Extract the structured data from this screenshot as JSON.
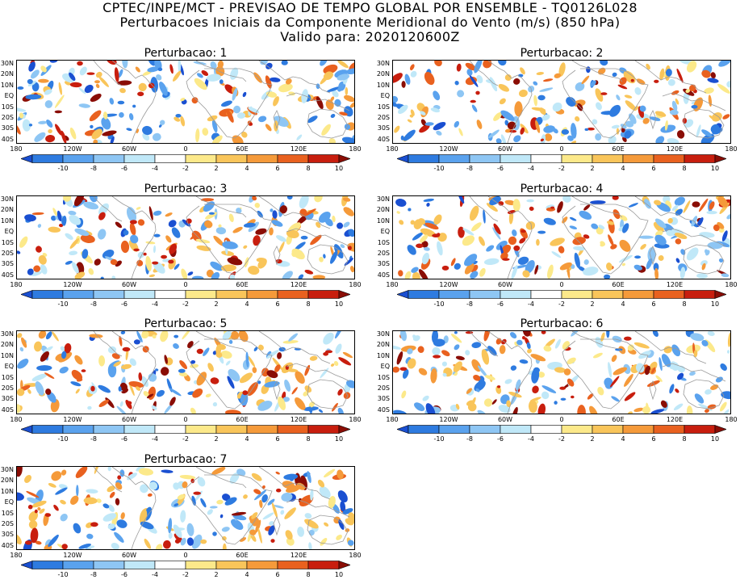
{
  "title": {
    "line1": "CPTEC/INPE/MCT - PREVISAO DE TEMPO GLOBAL POR ENSEMBLE - TQ0126L028",
    "line2": "Perturbacoes Iniciais da Componente Meridional do Vento (m/s) (850 hPa)",
    "line3": "Valido para: 2020120600Z"
  },
  "lat_labels": [
    "30N",
    "20N",
    "10N",
    "EQ",
    "10S",
    "20S",
    "30S",
    "40S"
  ],
  "lon_labels": [
    "180",
    "120W",
    "60W",
    "0",
    "60E",
    "120E",
    "180"
  ],
  "colorbar": {
    "labels": [
      "-10",
      "-8",
      "-6",
      "-4",
      "-2",
      "2",
      "4",
      "6",
      "8",
      "10"
    ],
    "colors": [
      "#1a4fd1",
      "#2e7be0",
      "#5aa2ee",
      "#8ec6f4",
      "#c0e8f8",
      "#ffffff",
      "#fce98a",
      "#f9c55a",
      "#f59a3a",
      "#e9611f",
      "#c81e0e",
      "#8a0d05"
    ]
  },
  "panels": [
    {
      "title": "Perturbacao: 1"
    },
    {
      "title": "Perturbacao: 2"
    },
    {
      "title": "Perturbacao: 3"
    },
    {
      "title": "Perturbacao: 4"
    },
    {
      "title": "Perturbacao: 5"
    },
    {
      "title": "Perturbacao: 6"
    },
    {
      "title": "Perturbacao: 7"
    }
  ]
}
